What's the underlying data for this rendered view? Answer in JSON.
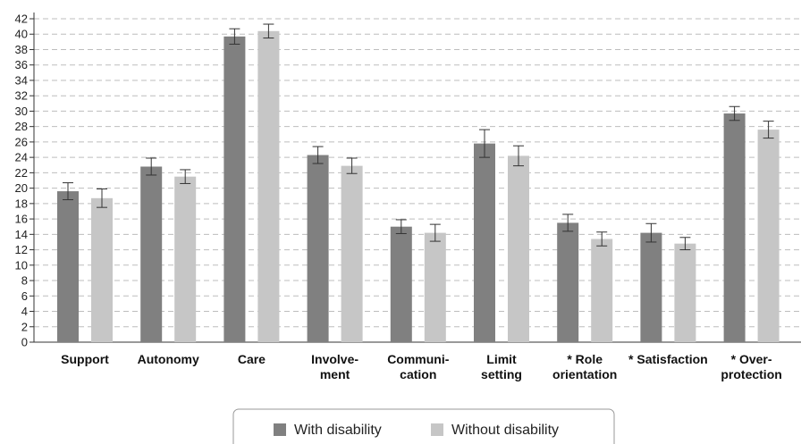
{
  "chart_data": {
    "type": "bar",
    "title": "",
    "xlabel": "",
    "ylabel": "",
    "ylim": [
      0,
      42
    ],
    "yticks": [
      0,
      2,
      4,
      6,
      8,
      10,
      12,
      14,
      16,
      18,
      20,
      22,
      24,
      26,
      28,
      30,
      32,
      34,
      36,
      38,
      40,
      42
    ],
    "grid": "horizontal-dashed",
    "legend_position": "bottom",
    "categories": [
      [
        "Support"
      ],
      [
        "Autonomy"
      ],
      [
        "Care"
      ],
      [
        "Involve-",
        "ment"
      ],
      [
        "Communi-",
        "cation"
      ],
      [
        "Limit",
        "setting"
      ],
      [
        "* Role",
        "orientation"
      ],
      [
        "* Satisfaction"
      ],
      [
        "* Over-",
        "protection"
      ]
    ],
    "series": [
      {
        "name": "With disability",
        "color": "#808080",
        "values": [
          19.6,
          22.8,
          39.7,
          24.3,
          15.0,
          25.8,
          15.5,
          14.2,
          29.7
        ],
        "error": [
          1.1,
          1.1,
          1.0,
          1.1,
          0.9,
          1.8,
          1.1,
          1.2,
          0.9
        ]
      },
      {
        "name": "Without disability",
        "color": "#c6c6c6",
        "values": [
          18.7,
          21.5,
          40.4,
          22.9,
          14.2,
          24.2,
          13.4,
          12.8,
          27.6
        ],
        "error": [
          1.2,
          0.9,
          0.9,
          1.0,
          1.1,
          1.3,
          0.9,
          0.8,
          1.1
        ]
      }
    ]
  }
}
